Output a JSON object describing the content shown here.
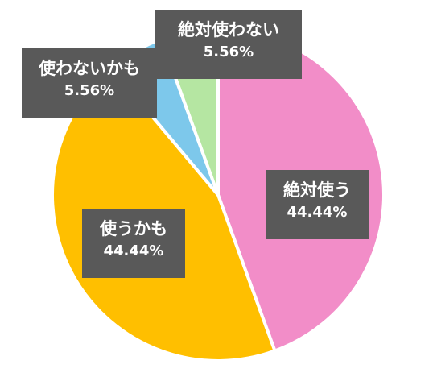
{
  "chart_data": {
    "type": "pie",
    "title": "",
    "legend": "none",
    "slices": [
      {
        "label": "絶対使う",
        "value": 44.44,
        "value_label": "44.44%",
        "color": "#F28DC8"
      },
      {
        "label": "使うかも",
        "value": 44.44,
        "value_label": "44.44%",
        "color": "#FFBF00"
      },
      {
        "label": "使わないかも",
        "value": 5.56,
        "value_label": "5.56%",
        "color": "#7DC8EB"
      },
      {
        "label": "絶対使わない",
        "value": 5.56,
        "value_label": "5.56%",
        "color": "#B5E6A2"
      }
    ]
  }
}
